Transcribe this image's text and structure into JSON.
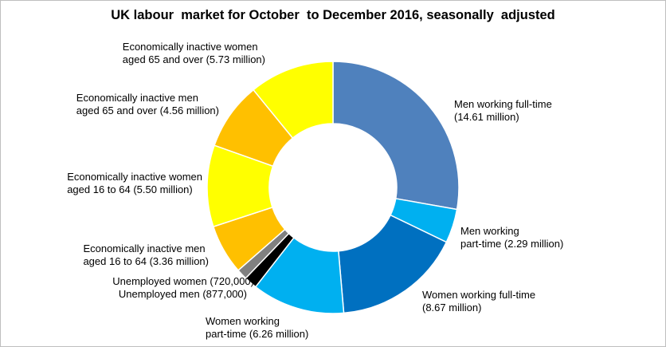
{
  "chart_data": {
    "type": "pie",
    "variant": "donut",
    "title": "UK labour  market for October  to December 2016, seasonally  adjusted",
    "legend": "none",
    "series": [
      {
        "values": [
          14.61,
          2.29,
          8.67,
          6.26,
          0.877,
          0.72,
          3.36,
          5.5,
          4.56,
          5.73
        ],
        "slices": [
          {
            "key": "men_ft",
            "value": 14.61,
            "color": "#4f81bd",
            "label": [
              "Men working full-time",
              "(14.61 million)"
            ]
          },
          {
            "key": "men_pt",
            "value": 2.29,
            "color": "#00b0f0",
            "label": [
              "Men working",
              "part-time (2.29 million)"
            ]
          },
          {
            "key": "women_ft",
            "value": 8.67,
            "color": "#0070c0",
            "label": [
              "Women working full-time",
              "(8.67 million)"
            ]
          },
          {
            "key": "women_pt",
            "value": 6.26,
            "color": "#00b0f0",
            "label": [
              "Women working",
              "part-time (6.26 million)"
            ]
          },
          {
            "key": "unemp_men",
            "value": 0.877,
            "color": "#000000",
            "label": [
              "Unemployed men (877,000)"
            ]
          },
          {
            "key": "unemp_women",
            "value": 0.72,
            "color": "#808080",
            "label": [
              "Unemployed women (720,000)"
            ]
          },
          {
            "key": "inact_men_16_64",
            "value": 3.36,
            "color": "#ffc000",
            "label": [
              "Economically inactive men",
              "aged 16 to 64 (3.36 million)"
            ]
          },
          {
            "key": "inact_women_16_64",
            "value": 5.5,
            "color": "#ffff00",
            "label": [
              "Economically inactive women",
              "aged 16 to 64 (5.50 million)"
            ]
          },
          {
            "key": "inact_men_65",
            "value": 4.56,
            "color": "#ffc000",
            "label": [
              "Economically inactive men",
              "aged 65 and over (4.56 million)"
            ]
          },
          {
            "key": "inact_women_65",
            "value": 5.73,
            "color": "#ffff00",
            "label": [
              "Economically inactive women",
              "aged 65 and over (5.73 million)"
            ]
          }
        ]
      }
    ]
  }
}
